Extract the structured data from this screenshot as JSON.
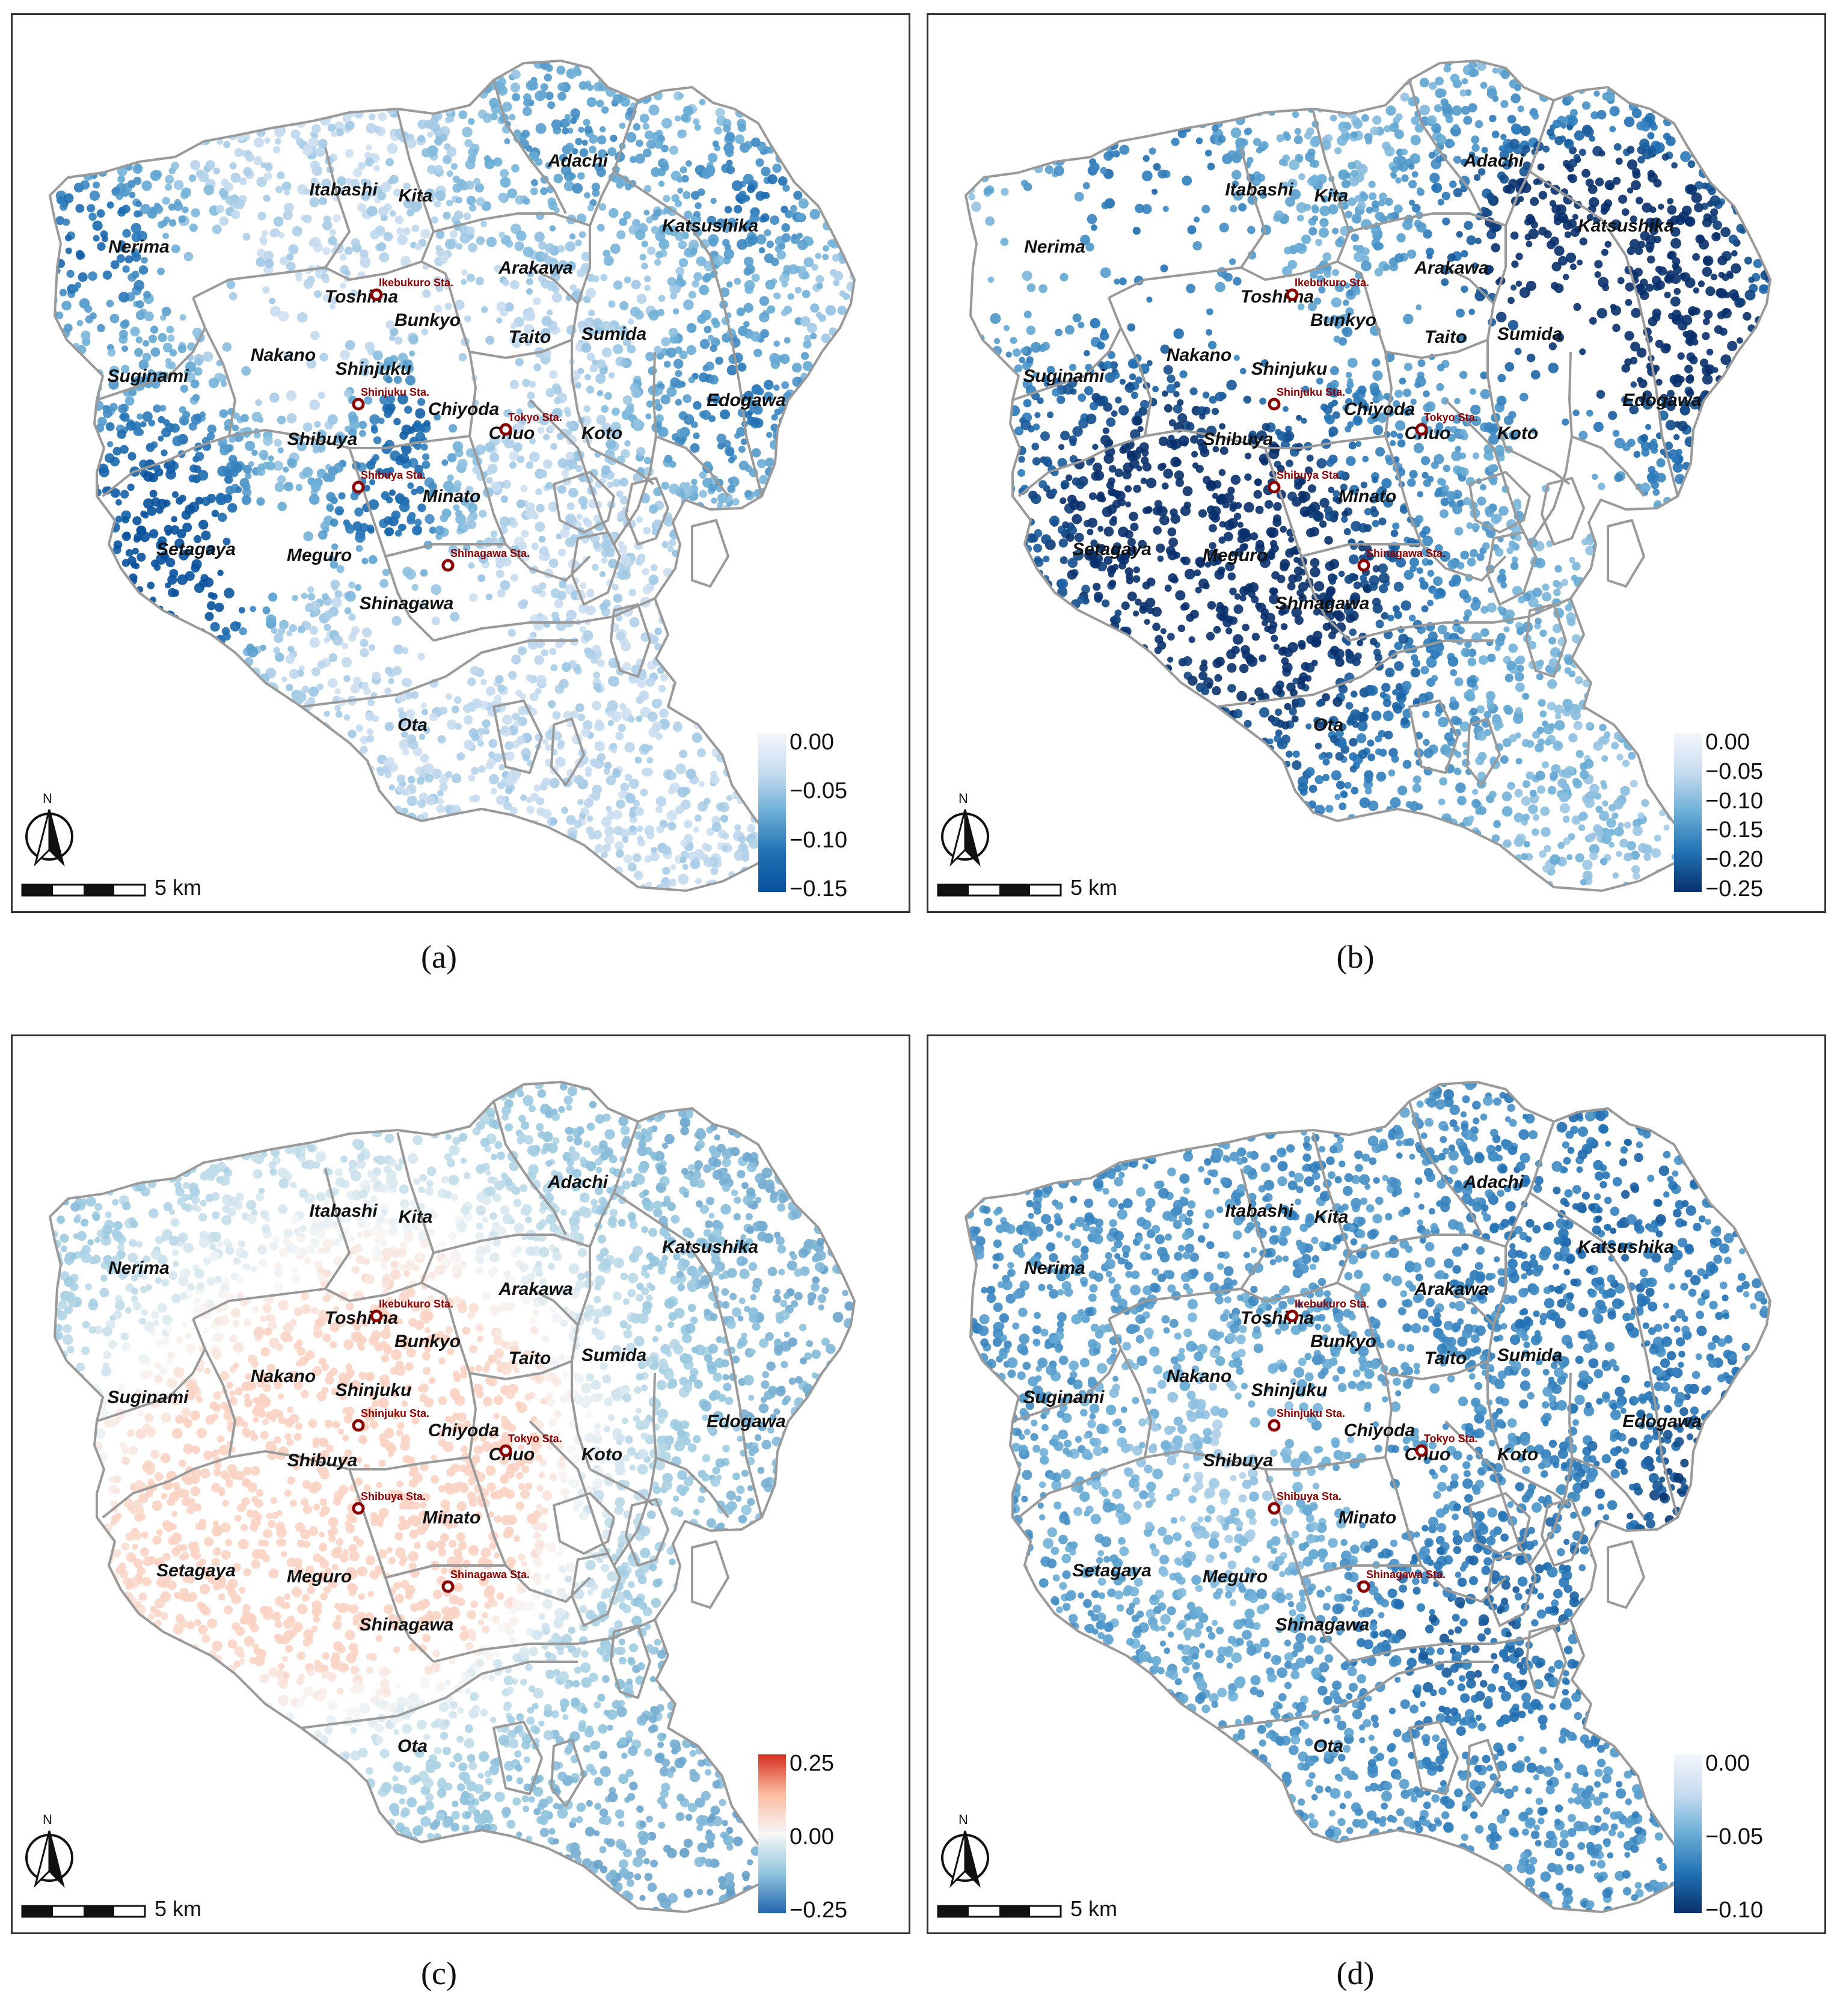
{
  "panels": [
    {
      "id": "a",
      "caption": "(a)",
      "legend": {
        "ticks": [
          "0.00",
          "−0.05",
          "−0.10",
          "−0.15"
        ],
        "colors": [
          "#f4f7fc",
          "#c6dbef",
          "#6baed6",
          "#2171b5",
          "#08519c"
        ]
      }
    },
    {
      "id": "b",
      "caption": "(b)",
      "legend": {
        "ticks": [
          "0.00",
          "−0.05",
          "−0.10",
          "−0.15",
          "−0.20",
          "−0.25"
        ],
        "colors": [
          "#f4f7fc",
          "#c6dbef",
          "#6baed6",
          "#2171b5",
          "#08306b"
        ]
      }
    },
    {
      "id": "c",
      "caption": "(c)",
      "legend": {
        "ticks": [
          "0.25",
          "0.00",
          "−0.25"
        ],
        "colors": [
          "#d7301f",
          "#fcbba1",
          "#f7f7f7",
          "#92c5de",
          "#2166ac"
        ]
      }
    },
    {
      "id": "d",
      "caption": "(d)",
      "legend": {
        "ticks": [
          "0.00",
          "−0.05",
          "−0.10"
        ],
        "colors": [
          "#f4f7fc",
          "#c6dbef",
          "#6baed6",
          "#2171b5",
          "#08306b"
        ]
      }
    }
  ],
  "wards": [
    "Adachi",
    "Itabashi",
    "Kita",
    "Katsushika",
    "Nerima",
    "Arakawa",
    "Toshima",
    "Bunkyo",
    "Taito",
    "Sumida",
    "Nakano",
    "Suginami",
    "Shinjuku",
    "Edogawa",
    "Chiyoda",
    "Chuo",
    "Koto",
    "Shibuya",
    "Minato",
    "Setagaya",
    "Meguro",
    "Shinagawa",
    "Ota"
  ],
  "stations": [
    "Ikebukuro Sta.",
    "Shinjuku Sta.",
    "Tokyo Sta.",
    "Shibuya Sta.",
    "Shinagawa Sta."
  ],
  "north_label": "N",
  "scale_label": "5 km",
  "colors": {
    "boundary": "#9a9a9a",
    "station": "#8b0000"
  }
}
